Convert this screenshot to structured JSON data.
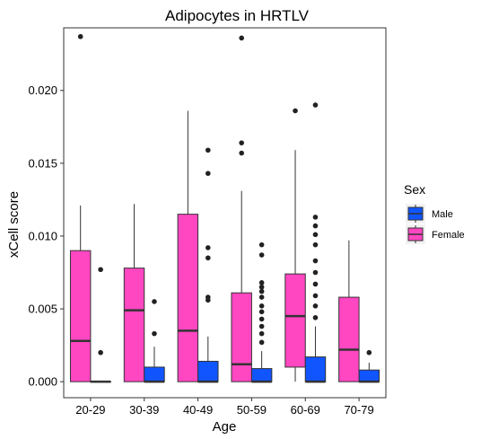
{
  "chart_data": {
    "type": "boxplot",
    "title": "Adipocytes in HRTLV",
    "xlabel": "Age",
    "ylabel": "xCell score",
    "categories": [
      "20-29",
      "30-39",
      "40-49",
      "50-59",
      "60-69",
      "70-79"
    ],
    "ylim": [
      -0.0011,
      0.0243
    ],
    "yticks": [
      0.0,
      0.005,
      0.01,
      0.015,
      0.02
    ],
    "ytick_labels": [
      "0.000",
      "0.005",
      "0.010",
      "0.015",
      "0.020"
    ],
    "grid": false,
    "legend": {
      "title": "Sex",
      "placement": "right",
      "entries": [
        {
          "label": "Male",
          "color": "#1155ff"
        },
        {
          "label": "Female",
          "color": "#ff47c2"
        }
      ]
    },
    "series": [
      {
        "name": "Female",
        "color": "#ff47c2",
        "boxes": [
          {
            "q1": 0.0,
            "median": 0.0028,
            "q3": 0.009,
            "whisker_low": 0.0,
            "whisker_high": 0.0121,
            "outliers": [
              0.0237
            ]
          },
          {
            "q1": 0.0,
            "median": 0.0049,
            "q3": 0.0078,
            "whisker_low": 0.0,
            "whisker_high": 0.0122,
            "outliers": []
          },
          {
            "q1": 0.0,
            "median": 0.0035,
            "q3": 0.0115,
            "whisker_low": 0.0,
            "whisker_high": 0.0186,
            "outliers": []
          },
          {
            "q1": 0.0,
            "median": 0.0012,
            "q3": 0.0061,
            "whisker_low": 0.0,
            "whisker_high": 0.0131,
            "outliers": [
              0.0157,
              0.0164,
              0.0236
            ]
          },
          {
            "q1": 0.001,
            "median": 0.0045,
            "q3": 0.0074,
            "whisker_low": 0.0,
            "whisker_high": 0.0159,
            "outliers": [
              0.0186
            ]
          },
          {
            "q1": 0.0,
            "median": 0.0022,
            "q3": 0.0058,
            "whisker_low": 0.0,
            "whisker_high": 0.0097,
            "outliers": []
          }
        ]
      },
      {
        "name": "Male",
        "color": "#1155ff",
        "boxes": [
          {
            "q1": 0.0,
            "median": 0.0,
            "q3": 0.0,
            "whisker_low": 0.0,
            "whisker_high": 0.0,
            "outliers": [
              0.002,
              0.0077
            ]
          },
          {
            "q1": 0.0,
            "median": 0.0,
            "q3": 0.001,
            "whisker_low": 0.0,
            "whisker_high": 0.0024,
            "outliers": [
              0.0033,
              0.0055
            ]
          },
          {
            "q1": 0.0,
            "median": 0.0,
            "q3": 0.0014,
            "whisker_low": 0.0,
            "whisker_high": 0.0031,
            "outliers": [
              0.0056,
              0.0058,
              0.0085,
              0.0092,
              0.0143,
              0.0159
            ]
          },
          {
            "q1": 0.0,
            "median": 0.0,
            "q3": 0.0009,
            "whisker_low": 0.0,
            "whisker_high": 0.0021,
            "outliers": [
              0.0027,
              0.0033,
              0.0038,
              0.0043,
              0.0048,
              0.0052,
              0.0058,
              0.0062,
              0.0065,
              0.0068,
              0.0087,
              0.0094
            ]
          },
          {
            "q1": 0.0,
            "median": 0.0,
            "q3": 0.0017,
            "whisker_low": 0.0,
            "whisker_high": 0.0038,
            "outliers": [
              0.0044,
              0.0052,
              0.0059,
              0.0067,
              0.0075,
              0.0083,
              0.0094,
              0.0101,
              0.0107,
              0.0113,
              0.019
            ]
          },
          {
            "q1": 0.0,
            "median": 0.0,
            "q3": 0.0008,
            "whisker_low": 0.0,
            "whisker_high": 0.0013,
            "outliers": [
              0.002
            ]
          }
        ]
      }
    ]
  }
}
